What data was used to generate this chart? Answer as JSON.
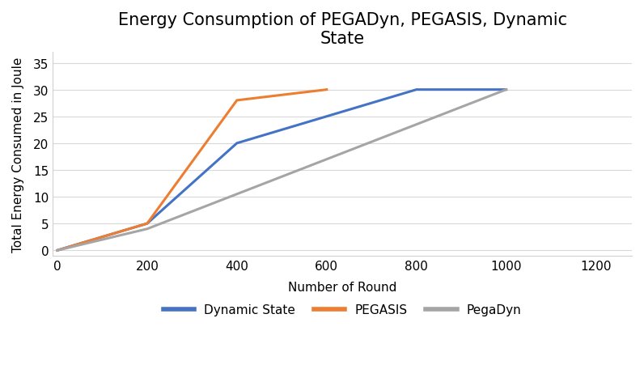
{
  "title": "Energy Consumption of PEGADyn, PEGASIS, Dynamic\nState",
  "xlabel": "Number of Round",
  "ylabel": "Total Energy Consumed in Joule",
  "xlim": [
    -10,
    1280
  ],
  "ylim": [
    -1,
    37
  ],
  "xticks": [
    0,
    200,
    400,
    600,
    800,
    1000,
    1200
  ],
  "yticks": [
    0,
    5,
    10,
    15,
    20,
    25,
    30,
    35
  ],
  "series": [
    {
      "label": "Dynamic State",
      "color": "#4472C4",
      "x": [
        0,
        200,
        400,
        800,
        1000
      ],
      "y": [
        0,
        5,
        20,
        30,
        30
      ]
    },
    {
      "label": "PEGASIS",
      "color": "#ED7D31",
      "x": [
        0,
        200,
        400,
        600
      ],
      "y": [
        0,
        5,
        28,
        30
      ]
    },
    {
      "label": "PegaDyn",
      "color": "#A5A5A5",
      "x": [
        0,
        200,
        1000
      ],
      "y": [
        0,
        4,
        30
      ]
    }
  ],
  "line_width": 2.2,
  "background_color": "#FFFFFF",
  "plot_bg_color": "#FFFFFF",
  "grid_color": "#D9D9D9",
  "title_fontsize": 15,
  "axis_label_fontsize": 11,
  "tick_fontsize": 11,
  "legend_fontsize": 11
}
